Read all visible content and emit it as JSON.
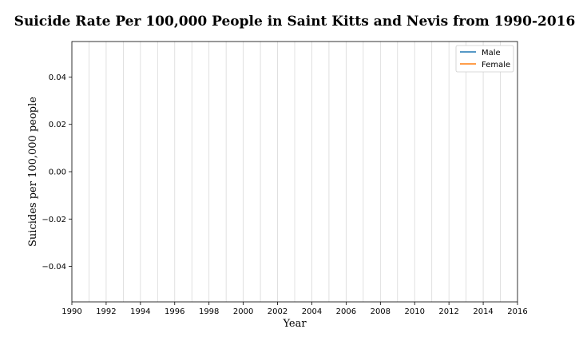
{
  "chart_data": {
    "type": "line",
    "title": "Suicide Rate Per 100,000 People in Saint Kitts and Nevis from 1990-2016",
    "xlabel": "Year",
    "ylabel": "Suicides per 100,000 people",
    "xlim": [
      1990,
      2016
    ],
    "ylim": [
      -0.055,
      0.055
    ],
    "x_ticks": [
      1990,
      1992,
      1994,
      1996,
      1998,
      2000,
      2002,
      2004,
      2006,
      2008,
      2010,
      2012,
      2014,
      2016
    ],
    "x_tick_labels": [
      "1990",
      "1992",
      "1994",
      "1996",
      "1998",
      "2000",
      "2002",
      "2004",
      "2006",
      "2008",
      "2010",
      "2012",
      "2014",
      "2016"
    ],
    "y_ticks": [
      0.04,
      0.02,
      0.0,
      -0.02,
      -0.04
    ],
    "y_tick_labels": [
      "0.04",
      "0.02",
      "0.00",
      "−0.02",
      "−0.04"
    ],
    "x_gridlines": [
      1991,
      1992,
      1993,
      1994,
      1995,
      1996,
      1997,
      1998,
      1999,
      2000,
      2001,
      2002,
      2003,
      2004,
      2005,
      2006,
      2007,
      2008,
      2009,
      2010,
      2011,
      2012,
      2013,
      2014,
      2015
    ],
    "grid": "vertical",
    "legend_position": "top-right",
    "series": [
      {
        "name": "Male",
        "color": "#1f77b4",
        "x": [],
        "values": []
      },
      {
        "name": "Female",
        "color": "#ff7f0e",
        "x": [],
        "values": []
      }
    ]
  }
}
